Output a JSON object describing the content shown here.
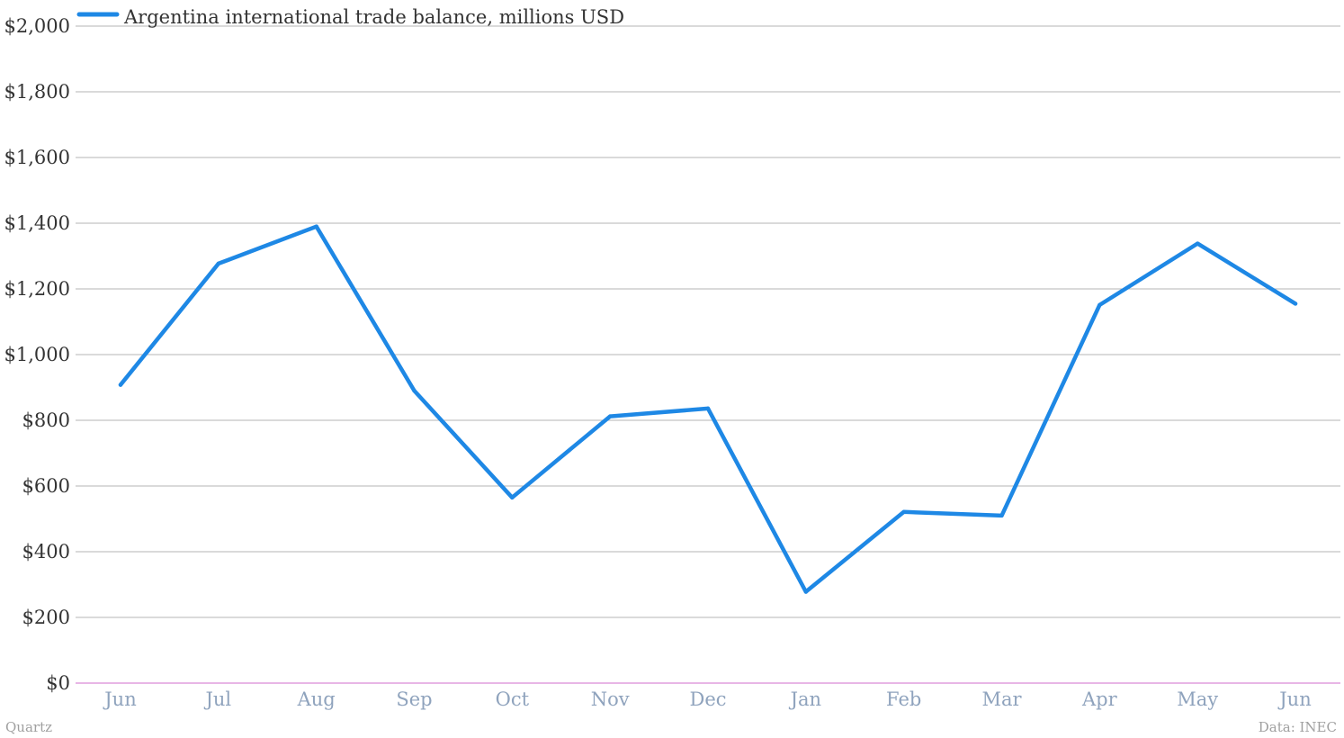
{
  "chart_data": {
    "type": "line",
    "categories": [
      "Jun",
      "Jul",
      "Aug",
      "Sep",
      "Oct",
      "Nov",
      "Dec",
      "Jan",
      "Feb",
      "Mar",
      "Apr",
      "May",
      "Jun"
    ],
    "series": [
      {
        "name": "Argentina international trade balance, millions USD",
        "color": "#1e88e5",
        "values": [
          908,
          1277,
          1390,
          890,
          565,
          812,
          836,
          278,
          521,
          510,
          1151,
          1338,
          1155
        ]
      }
    ],
    "ylim": [
      0,
      2000
    ],
    "y_ticks": [
      0,
      200,
      400,
      600,
      800,
      1000,
      1200,
      1400,
      1600,
      1800,
      2000
    ],
    "y_tick_labels": [
      "$0",
      "$200",
      "$400",
      "$600",
      "$800",
      "$1,000",
      "$1,200",
      "$1,400",
      "$1,600",
      "$1,800",
      "$2,000"
    ],
    "grid": true,
    "legend_position": "top-left",
    "colors": {
      "series": "#1e88e5",
      "grid": "#b5b5b5",
      "baseline": "#d98ad6",
      "x_tick_labels": "#8fa3bd",
      "y_tick_labels": "#333333",
      "footer": "#a0a0a0"
    }
  },
  "footer": {
    "source_left": "Quartz",
    "source_right": "Data: INEC"
  }
}
